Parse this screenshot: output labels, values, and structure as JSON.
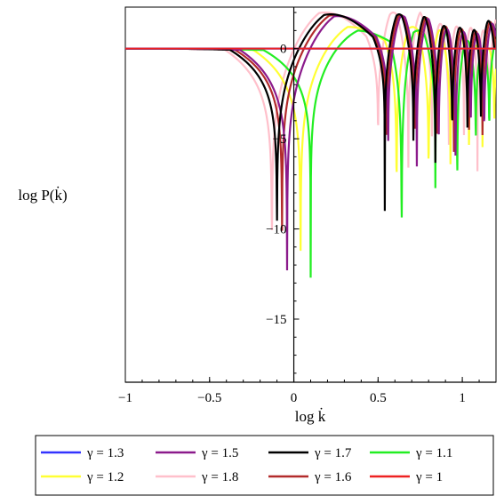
{
  "chart_data": {
    "type": "line",
    "xlabel": "log k̇",
    "ylabel": "log P(k̇)",
    "xlim": [
      -1,
      1.2
    ],
    "ylim": [
      -18.5,
      2.3
    ],
    "x_ticks": [
      -1,
      -0.5,
      0,
      0.5,
      1
    ],
    "x_tick_labels": [
      "−1",
      "−0.5",
      "0",
      "0.5",
      "1"
    ],
    "y_ticks": [
      0,
      -5,
      -10,
      -15
    ],
    "y_tick_labels": [
      "0",
      "−5",
      "−10",
      "−15"
    ],
    "grid": false,
    "legend_position": "bottom",
    "series": [
      {
        "name": "γ = 1.3",
        "color": "#3333ff",
        "dips": [],
        "amplitude": 0
      },
      {
        "name": "γ = 1.5",
        "color": "#8b1a8b",
        "dips": [
          [
            -0.04,
            -15.3
          ],
          [
            0.56,
            -9.3
          ],
          [
            0.73,
            -9.8
          ],
          [
            0.86,
            -9.2
          ],
          [
            0.96,
            -10.8
          ],
          [
            1.05,
            -7.8
          ],
          [
            1.13,
            -8.2
          ]
        ],
        "amplitude": 1.8
      },
      {
        "name": "γ = 1.7",
        "color": "#000000",
        "dips": [
          [
            -0.1,
            -13.7
          ],
          [
            0.54,
            -9.0
          ],
          [
            0.71,
            -8.6
          ],
          [
            0.84,
            -9.5
          ],
          [
            0.94,
            -8.1
          ],
          [
            1.03,
            -7.4
          ],
          [
            1.11,
            -6.9
          ]
        ],
        "amplitude": 1.9
      },
      {
        "name": "γ = 1.1",
        "color": "#22ee22",
        "dips": [
          [
            0.1,
            -12.7
          ],
          [
            0.64,
            -18.0
          ],
          [
            0.84,
            -11.6
          ],
          [
            0.97,
            -13.0
          ],
          [
            1.08,
            -9.3
          ],
          [
            1.16,
            -8.1
          ]
        ],
        "amplitude": 1.0
      },
      {
        "name": "γ = 1.2",
        "color": "#ffff33",
        "dips": [
          [
            0.04,
            -15.2
          ],
          [
            0.61,
            -13.8
          ],
          [
            0.8,
            -12.3
          ],
          [
            0.93,
            -10.8
          ],
          [
            1.04,
            -9.0
          ],
          [
            1.12,
            -8.2
          ],
          [
            1.19,
            -7.5
          ]
        ],
        "amplitude": 1.2
      },
      {
        "name": "γ = 1.8",
        "color": "#ffc0cb",
        "dips": [
          [
            -0.13,
            -15.1
          ],
          [
            0.5,
            -8.6
          ],
          [
            0.68,
            -9.9
          ],
          [
            0.82,
            -8.2
          ],
          [
            0.92,
            -9.0
          ],
          [
            1.01,
            -7.2
          ],
          [
            1.09,
            -6.8
          ],
          [
            1.16,
            -6.4
          ]
        ],
        "amplitude": 2.0
      },
      {
        "name": "γ = 1.6",
        "color": "#b22b2b",
        "dips": [
          [
            -0.07,
            -13.7
          ],
          [
            0.55,
            -9.2
          ],
          [
            0.72,
            -9.0
          ],
          [
            0.85,
            -8.6
          ],
          [
            0.95,
            -8.6
          ],
          [
            1.04,
            -7.6
          ],
          [
            1.12,
            -7.2
          ]
        ],
        "amplitude": 1.85
      },
      {
        "name": "γ = 1",
        "color": "#ee2222",
        "dips": [],
        "amplitude": 0
      }
    ]
  }
}
